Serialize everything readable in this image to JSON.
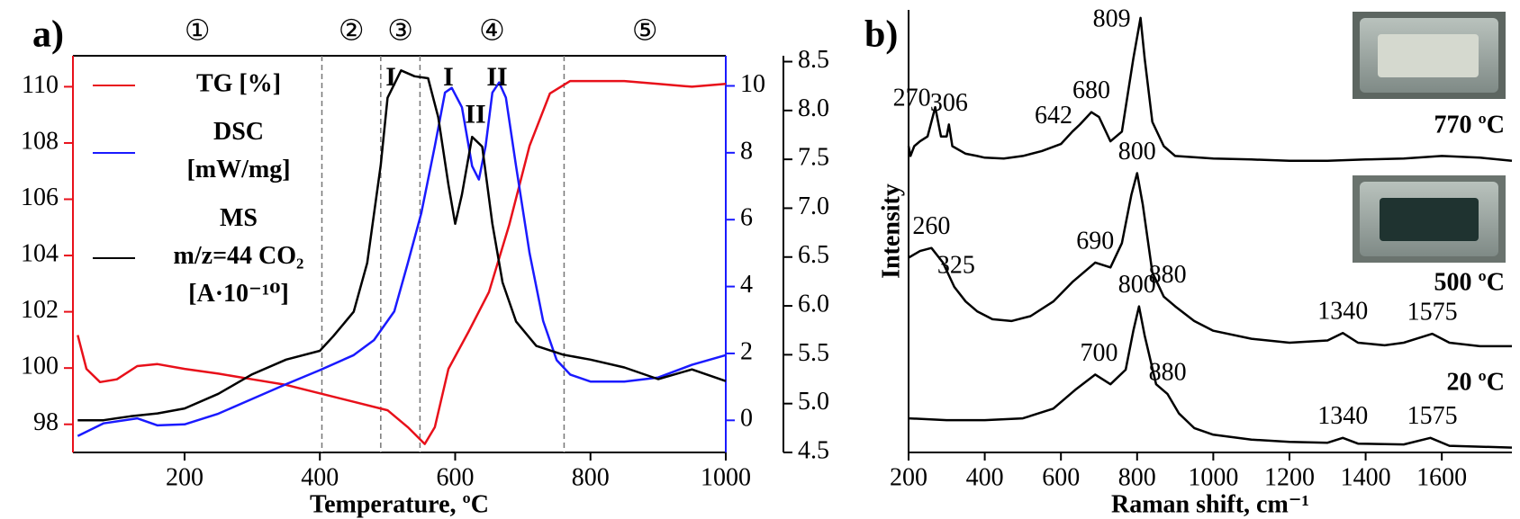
{
  "chart_data": [
    {
      "type": "line",
      "panel": "a)",
      "xlabel": "Temperature, ºC",
      "frame": true,
      "legend": "upper left",
      "xlim": [
        35,
        1000
      ],
      "xticks": [
        200,
        400,
        600,
        800,
        1000
      ],
      "ylim": [
        97,
        111.1
      ],
      "yticks": [
        98,
        100,
        102,
        104,
        106,
        108,
        110
      ],
      "y2lim": [
        -0.96,
        10.9
      ],
      "y2ticks": [
        0,
        2,
        4,
        6,
        8,
        10
      ],
      "y3lim": [
        4.5,
        8.56
      ],
      "y3ticks": [
        4.5,
        {
          "value": 5,
          "label": "5.0"
        },
        5.5,
        {
          "value": 6,
          "label": "6.0"
        },
        6.5,
        {
          "value": 7,
          "label": "7.0"
        },
        7.5,
        {
          "value": 8,
          "label": "8.0"
        },
        8.5
      ],
      "dividers": [
        403,
        490,
        548,
        761
      ],
      "region_labels": [
        "①",
        "②",
        "③",
        "④",
        "⑤"
      ],
      "series": [
        {
          "name": "TG [%]",
          "color": "#e8101a",
          "x": [
            42,
            55,
            75,
            100,
            130,
            160,
            200,
            250,
            300,
            350,
            400,
            450,
            500,
            530,
            555,
            570,
            590,
            620,
            650,
            680,
            710,
            740,
            770,
            800,
            850,
            900,
            950,
            1000
          ],
          "values": [
            101.17,
            99.97,
            99.5,
            99.6,
            100.07,
            100.14,
            99.97,
            99.8,
            99.6,
            99.4,
            99.1,
            98.8,
            98.5,
            97.9,
            97.3,
            97.9,
            99.97,
            101.3,
            102.7,
            105.1,
            107.9,
            109.76,
            110.2,
            110.2,
            110.2,
            110.1,
            110,
            110.1
          ]
        },
        {
          "name": "DSC\n[mW/mg]",
          "color": "#1a1aff",
          "axis": "y2",
          "x": [
            42,
            80,
            130,
            160,
            200,
            250,
            300,
            350,
            400,
            450,
            480,
            510,
            530,
            550,
            570,
            585,
            595,
            610,
            625,
            635,
            645,
            655,
            665,
            675,
            690,
            710,
            730,
            750,
            770,
            800,
            850,
            900,
            950,
            1000
          ],
          "values": [
            -0.47,
            -0.09,
            0.06,
            -0.15,
            -0.12,
            0.2,
            0.64,
            1.08,
            1.5,
            1.95,
            2.4,
            3.26,
            4.7,
            6.2,
            8.2,
            9.8,
            9.94,
            9.36,
            7.6,
            7.2,
            8.2,
            9.8,
            10.1,
            9.65,
            7.6,
            5,
            2.97,
            1.8,
            1.37,
            1.16,
            1.16,
            1.28,
            1.66,
            1.95
          ]
        },
        {
          "name": "MS\nm/z=44 CO₂\n[A·10⁻¹⁰]",
          "color": "#000000",
          "axis": "y3",
          "x": [
            42,
            80,
            120,
            160,
            200,
            250,
            300,
            350,
            400,
            420,
            450,
            470,
            490,
            500,
            520,
            540,
            560,
            575,
            590,
            600,
            610,
            625,
            640,
            655,
            670,
            690,
            720,
            760,
            800,
            850,
            900,
            950,
            1000
          ],
          "values": [
            4.83,
            4.83,
            4.87,
            4.9,
            4.95,
            5.1,
            5.3,
            5.45,
            5.54,
            5.69,
            5.94,
            6.44,
            7.44,
            8.13,
            8.41,
            8.35,
            8.33,
            7.93,
            7.24,
            6.84,
            7.14,
            7.73,
            7.63,
            6.84,
            6.24,
            5.84,
            5.59,
            5.5,
            5.45,
            5.37,
            5.25,
            5.35,
            5.23
          ]
        }
      ],
      "annotations": [
        {
          "text": "I",
          "series": 2,
          "x": 505
        },
        {
          "text": "II",
          "series": 2,
          "x": 630
        },
        {
          "text": "I",
          "series": 1,
          "x": 590
        },
        {
          "text": "II",
          "series": 1,
          "x": 662
        }
      ]
    },
    {
      "type": "line",
      "panel": "b)",
      "xlabel": "Raman shift, cm⁻¹",
      "ylabel": "Intensity",
      "legend": "right",
      "xlim": [
        200,
        1784
      ],
      "xticks": [
        200,
        400,
        600,
        800,
        1000,
        1200,
        1400,
        1600
      ],
      "ylim": [
        0,
        100
      ],
      "series": [
        {
          "name": "770 ºC",
          "color": "#000000",
          "x": [
            200,
            205,
            215,
            230,
            250,
            270,
            285,
            300,
            306,
            315,
            350,
            380,
            400,
            450,
            500,
            550,
            600,
            630,
            650,
            680,
            700,
            730,
            760,
            790,
            809,
            820,
            840,
            870,
            900,
            1000,
            1100,
            1200,
            1300,
            1400,
            1500,
            1600,
            1700,
            1784
          ],
          "values": [
            69.2,
            67.0,
            69.2,
            70.3,
            71.4,
            78.0,
            71.4,
            71.4,
            74.1,
            69.2,
            67.5,
            67.0,
            66.6,
            66.4,
            67.0,
            68.1,
            69.7,
            72.5,
            74.1,
            76.9,
            75.8,
            70.3,
            72.5,
            89.0,
            98.2,
            89.0,
            74.7,
            69.2,
            67.0,
            66.4,
            66.2,
            65.9,
            65.9,
            66.2,
            66.4,
            67.0,
            66.6,
            65.9
          ],
          "peaks": [
            270,
            306,
            642,
            680,
            809
          ]
        },
        {
          "name": "500 ºC",
          "color": "#000000",
          "x": [
            200,
            230,
            260,
            290,
            320,
            350,
            380,
            420,
            470,
            520,
            580,
            630,
            690,
            730,
            760,
            785,
            800,
            815,
            840,
            870,
            900,
            950,
            1000,
            1100,
            1200,
            1300,
            1340,
            1380,
            1450,
            1500,
            1575,
            1620,
            1700,
            1784
          ],
          "values": [
            44,
            45.5,
            46.2,
            42.9,
            37.4,
            34.1,
            31.9,
            30.1,
            29.7,
            30.8,
            34.1,
            38.5,
            42.9,
            41.8,
            47.3,
            58.2,
            63.1,
            56,
            40.7,
            35.2,
            33,
            29.7,
            27.5,
            25.7,
            24.8,
            25.3,
            27,
            24.8,
            24.2,
            24.8,
            26.8,
            24.8,
            24,
            24
          ],
          "peaks": [
            260,
            325,
            690,
            800,
            880,
            1340,
            1575
          ]
        },
        {
          "name": "20 ºC",
          "color": "#000000",
          "x": [
            200,
            300,
            400,
            500,
            580,
            640,
            690,
            730,
            770,
            790,
            805,
            820,
            850,
            880,
            910,
            950,
            1000,
            1100,
            1200,
            1300,
            1340,
            1380,
            1500,
            1570,
            1620,
            1784
          ],
          "values": [
            7.7,
            7.3,
            7.3,
            7.7,
            9.9,
            14.3,
            17.6,
            15.4,
            18.7,
            27.5,
            33,
            26.4,
            15.4,
            13.2,
            8.8,
            5.5,
            4,
            2.9,
            2.4,
            2.2,
            3.3,
            2,
            1.8,
            3.3,
            1.5,
            1.1
          ],
          "peaks": [
            700,
            800,
            880,
            1340,
            1575
          ]
        }
      ]
    }
  ]
}
